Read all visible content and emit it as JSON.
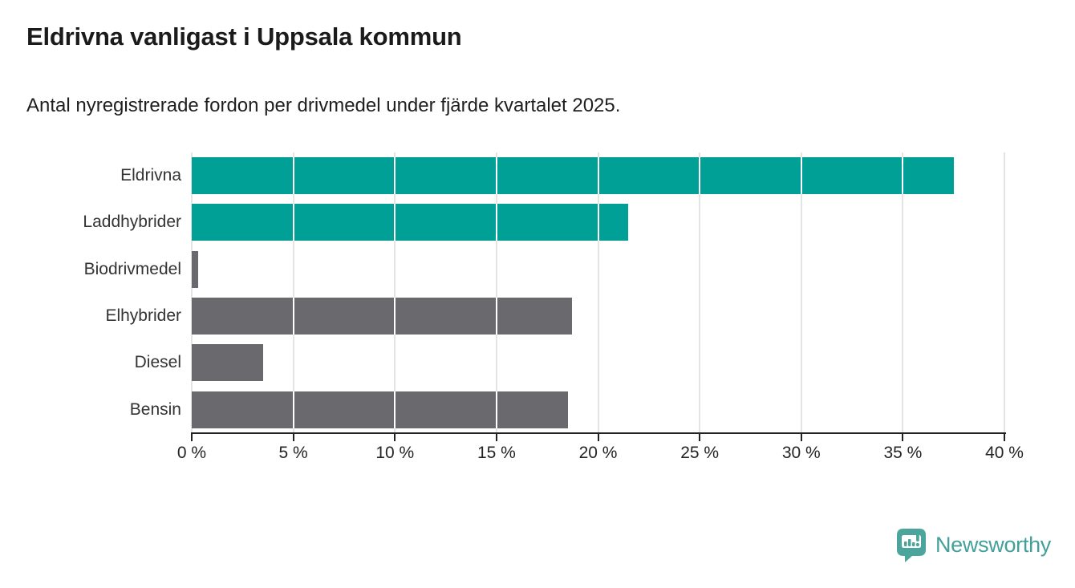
{
  "chart_data": {
    "type": "bar",
    "orientation": "horizontal",
    "title": "Eldrivna vanligast i Uppsala kommun",
    "subtitle": "Antal nyregistrerade fordon per drivmedel under fjärde kvartalet 2025.",
    "categories": [
      "Eldrivna",
      "Laddhybrider",
      "Biodrivmedel",
      "Elhybrider",
      "Diesel",
      "Bensin"
    ],
    "values": [
      37.5,
      21.5,
      0.3,
      18.7,
      3.5,
      18.5
    ],
    "unit": "%",
    "xlim": [
      0,
      40
    ],
    "x_ticks": [
      0,
      5,
      10,
      15,
      20,
      25,
      30,
      35,
      40
    ],
    "x_tick_labels": [
      "0 %",
      "5 %",
      "10 %",
      "15 %",
      "20 %",
      "25 %",
      "30 %",
      "35 %",
      "40 %"
    ],
    "highlight_color": "#00a096",
    "default_color": "#6a6a6e",
    "bar_colors": [
      "#00a096",
      "#00a096",
      "#6a6a6e",
      "#6a6a6e",
      "#6a6a6e",
      "#6a6a6e"
    ],
    "grid": true,
    "gridline_color": "#e4e4e4",
    "axis_color": "#222222"
  },
  "footer": {
    "brand": "Newsworthy",
    "brand_color": "#43a09a",
    "logo_color": "#4ba59d",
    "logo_icon": "newsworthy-pin-barchart-icon"
  }
}
